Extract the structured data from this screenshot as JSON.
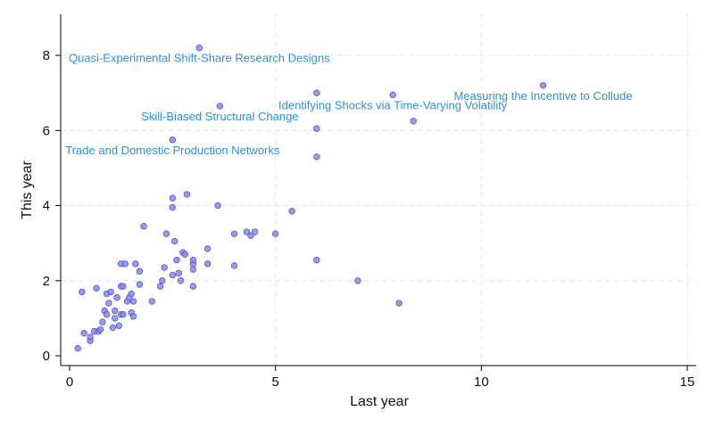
{
  "chart_data": {
    "type": "scatter",
    "xlabel": "Last year",
    "ylabel": "This year",
    "xlim": [
      0,
      15
    ],
    "ylim": [
      0,
      9
    ],
    "xticks": [
      0,
      5,
      10,
      15
    ],
    "yticks": [
      0,
      2,
      4,
      6,
      8
    ],
    "grid": true,
    "marker_fill": "#8888f0",
    "marker_stroke": "#5555cc",
    "label_color": "#2f8fd6",
    "points": [
      {
        "x": 0.2,
        "y": 0.2
      },
      {
        "x": 0.35,
        "y": 0.6
      },
      {
        "x": 0.5,
        "y": 0.4
      },
      {
        "x": 0.5,
        "y": 0.5
      },
      {
        "x": 0.6,
        "y": 0.65
      },
      {
        "x": 0.7,
        "y": 0.65
      },
      {
        "x": 0.8,
        "y": 0.9
      },
      {
        "x": 0.75,
        "y": 0.7
      },
      {
        "x": 0.3,
        "y": 1.7
      },
      {
        "x": 0.65,
        "y": 1.8
      },
      {
        "x": 0.85,
        "y": 1.2
      },
      {
        "x": 0.9,
        "y": 1.1
      },
      {
        "x": 0.9,
        "y": 1.65
      },
      {
        "x": 0.95,
        "y": 1.4
      },
      {
        "x": 1.0,
        "y": 1.7
      },
      {
        "x": 1.05,
        "y": 0.75
      },
      {
        "x": 1.1,
        "y": 1.0
      },
      {
        "x": 1.1,
        "y": 1.2
      },
      {
        "x": 1.15,
        "y": 1.55
      },
      {
        "x": 1.2,
        "y": 0.8
      },
      {
        "x": 1.25,
        "y": 1.1
      },
      {
        "x": 1.25,
        "y": 1.85
      },
      {
        "x": 1.3,
        "y": 1.1
      },
      {
        "x": 1.3,
        "y": 1.85
      },
      {
        "x": 1.25,
        "y": 2.45
      },
      {
        "x": 1.35,
        "y": 2.45
      },
      {
        "x": 1.4,
        "y": 1.45
      },
      {
        "x": 1.45,
        "y": 1.55
      },
      {
        "x": 1.5,
        "y": 1.15
      },
      {
        "x": 1.55,
        "y": 1.05
      },
      {
        "x": 1.5,
        "y": 1.65
      },
      {
        "x": 1.55,
        "y": 1.45
      },
      {
        "x": 1.6,
        "y": 2.45
      },
      {
        "x": 1.7,
        "y": 1.9
      },
      {
        "x": 1.7,
        "y": 2.25
      },
      {
        "x": 1.8,
        "y": 3.45
      },
      {
        "x": 2.0,
        "y": 1.45
      },
      {
        "x": 2.2,
        "y": 1.85
      },
      {
        "x": 2.25,
        "y": 2.0
      },
      {
        "x": 2.3,
        "y": 2.35
      },
      {
        "x": 2.35,
        "y": 3.25
      },
      {
        "x": 2.5,
        "y": 2.15
      },
      {
        "x": 2.5,
        "y": 3.95
      },
      {
        "x": 2.5,
        "y": 4.2
      },
      {
        "x": 2.6,
        "y": 2.55
      },
      {
        "x": 2.55,
        "y": 3.05
      },
      {
        "x": 2.65,
        "y": 2.2
      },
      {
        "x": 2.7,
        "y": 2.0
      },
      {
        "x": 2.75,
        "y": 2.75
      },
      {
        "x": 2.8,
        "y": 2.7
      },
      {
        "x": 2.85,
        "y": 4.3
      },
      {
        "x": 3.0,
        "y": 1.85
      },
      {
        "x": 3.0,
        "y": 2.3
      },
      {
        "x": 3.0,
        "y": 2.45
      },
      {
        "x": 3.0,
        "y": 2.55
      },
      {
        "x": 3.35,
        "y": 2.45
      },
      {
        "x": 3.35,
        "y": 2.85
      },
      {
        "x": 3.6,
        "y": 4.0
      },
      {
        "x": 4.0,
        "y": 2.4
      },
      {
        "x": 4.0,
        "y": 3.25
      },
      {
        "x": 4.3,
        "y": 3.3
      },
      {
        "x": 4.4,
        "y": 3.2
      },
      {
        "x": 4.5,
        "y": 3.3
      },
      {
        "x": 5.0,
        "y": 3.25
      },
      {
        "x": 5.4,
        "y": 3.85
      },
      {
        "x": 6.0,
        "y": 2.55
      },
      {
        "x": 6.0,
        "y": 5.3
      },
      {
        "x": 7.0,
        "y": 2.0
      },
      {
        "x": 8.0,
        "y": 1.4
      },
      {
        "x": 2.5,
        "y": 5.75,
        "label": "Trade and Domestic Production Networks"
      },
      {
        "x": 3.15,
        "y": 8.2,
        "label": "Quasi-Experimental Shift-Share Research Designs"
      },
      {
        "x": 3.65,
        "y": 6.65,
        "label": "Skill-Biased Structural Change"
      },
      {
        "x": 6.0,
        "y": 6.05
      },
      {
        "x": 6.0,
        "y": 7.0
      },
      {
        "x": 7.85,
        "y": 6.95,
        "label": "Identifying Shocks via Time-Varying Volatility"
      },
      {
        "x": 8.35,
        "y": 6.25
      },
      {
        "x": 11.5,
        "y": 7.2,
        "label": "Measuring the Incentive to Collude"
      }
    ]
  }
}
